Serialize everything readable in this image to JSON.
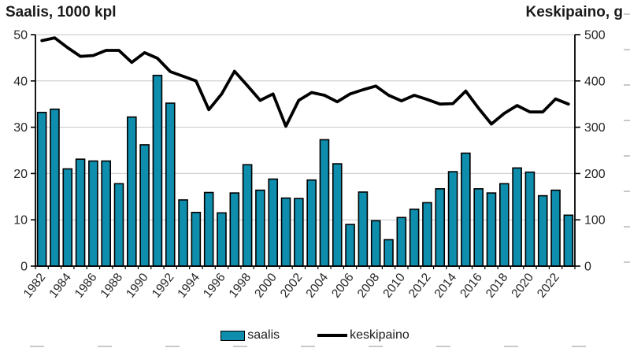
{
  "titles": {
    "left": "Saalis, 1000 kpl",
    "right": "Keskipaino, g"
  },
  "legend": {
    "items": [
      {
        "label": "saalis",
        "marker": "bar-swatch"
      },
      {
        "label": "keskipaino",
        "marker": "line-swatch"
      }
    ]
  },
  "colors": {
    "bar_fill": "#0e8dad",
    "bar_border": "#000000",
    "line": "#000000",
    "grid": "#c6c6c6",
    "axis": "#000000",
    "tick_text": "#262626",
    "artifact": "#c9c9c9",
    "background": "#ffffff"
  },
  "chart_data": {
    "type": "bar+line",
    "title": "",
    "x": [
      1982,
      1983,
      1984,
      1985,
      1986,
      1987,
      1988,
      1989,
      1990,
      1991,
      1992,
      1993,
      1994,
      1995,
      1996,
      1997,
      1998,
      1999,
      2000,
      2001,
      2002,
      2003,
      2004,
      2005,
      2006,
      2007,
      2008,
      2009,
      2010,
      2011,
      2012,
      2013,
      2014,
      2015,
      2016,
      2017,
      2018,
      2019,
      2020,
      2021,
      2022,
      2023
    ],
    "series": [
      {
        "name": "saalis",
        "type": "bar",
        "yaxis": "left",
        "unit": "1000 kpl",
        "values": [
          33.2,
          33.9,
          21.0,
          23.1,
          22.7,
          22.7,
          17.8,
          32.2,
          26.2,
          41.2,
          35.2,
          14.3,
          11.6,
          15.9,
          11.5,
          15.8,
          21.9,
          16.4,
          18.8,
          14.7,
          14.6,
          18.6,
          27.3,
          22.1,
          9.0,
          16.0,
          9.8,
          5.7,
          10.5,
          12.3,
          13.7,
          16.7,
          20.4,
          24.4,
          16.7,
          15.8,
          17.8,
          21.2,
          20.3,
          15.2,
          16.4,
          11.0
        ]
      },
      {
        "name": "keskipaino",
        "type": "line",
        "yaxis": "right",
        "unit": "g",
        "values": [
          487,
          493,
          472,
          453,
          455,
          466,
          466,
          440,
          461,
          449,
          420,
          410,
          400,
          338,
          372,
          421,
          390,
          358,
          372,
          302,
          358,
          375,
          369,
          355,
          372,
          381,
          389,
          369,
          357,
          369,
          360,
          350,
          351,
          378,
          341,
          307,
          330,
          347,
          333,
          333,
          361,
          350
        ]
      }
    ],
    "left_axis": {
      "label": "Saalis, 1000 kpl",
      "range": [
        0,
        50
      ],
      "ticks": [
        0,
        10,
        20,
        30,
        40,
        50
      ]
    },
    "right_axis": {
      "label": "Keskipaino, g",
      "range": [
        0,
        500
      ],
      "ticks": [
        0,
        100,
        200,
        300,
        400,
        500
      ]
    },
    "x_tick_labels": [
      1982,
      1984,
      1986,
      1988,
      1990,
      1992,
      1994,
      1996,
      1998,
      2000,
      2002,
      2004,
      2006,
      2008,
      2010,
      2012,
      2014,
      2016,
      2018,
      2020,
      2022
    ],
    "grid": "horizontal-on",
    "legend_position": "bottom"
  }
}
